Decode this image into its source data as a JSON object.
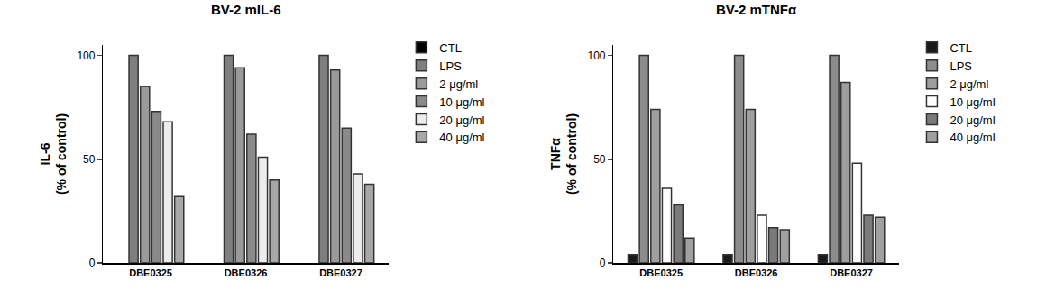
{
  "chart_data": [
    {
      "type": "bar",
      "title": "BV-2 mIL-6",
      "y_label": "IL-6\n(% of control)",
      "categories": [
        "DBE0325",
        "DBE0326",
        "DBE0327"
      ],
      "ylim": [
        0,
        105
      ],
      "yticks": [
        0,
        50,
        100
      ],
      "grid": false,
      "legend": "right",
      "series": [
        {
          "name": "CTL",
          "color": "#000000",
          "values": [
            null,
            null,
            null
          ]
        },
        {
          "name": "LPS",
          "color": "#7f7f7f",
          "values": [
            100,
            100,
            100
          ]
        },
        {
          "name": "2 μg/ml",
          "color": "#9a9a9a",
          "values": [
            85,
            94,
            93
          ]
        },
        {
          "name": "10 μg/ml",
          "color": "#8a8a8a",
          "values": [
            73,
            62,
            65
          ]
        },
        {
          "name": "20 μg/ml",
          "color": "#ececec",
          "values": [
            68,
            51,
            43
          ]
        },
        {
          "name": "40 μg/ml",
          "color": "#a8a8a8",
          "values": [
            32,
            40,
            38
          ]
        }
      ]
    },
    {
      "type": "bar",
      "title": "BV-2 mTNFα",
      "y_label": "TNFα\n(% of control)",
      "categories": [
        "DBE0325",
        "DBE0326",
        "DBE0327"
      ],
      "ylim": [
        0,
        105
      ],
      "yticks": [
        0,
        50,
        100
      ],
      "grid": false,
      "legend": "right",
      "series": [
        {
          "name": "CTL",
          "color": "#1a1a1a",
          "values": [
            4,
            4,
            4
          ]
        },
        {
          "name": "LPS",
          "color": "#8c8c8c",
          "values": [
            100,
            100,
            100
          ]
        },
        {
          "name": "2 μg/ml",
          "color": "#9e9e9e",
          "values": [
            74,
            74,
            87
          ]
        },
        {
          "name": "10 μg/ml",
          "color": "#ffffff",
          "values": [
            36,
            23,
            48
          ]
        },
        {
          "name": "20 μg/ml",
          "color": "#7a7a7a",
          "values": [
            28,
            17,
            23
          ]
        },
        {
          "name": "40 μg/ml",
          "color": "#a0a0a0",
          "values": [
            12,
            16,
            22
          ]
        }
      ]
    }
  ]
}
